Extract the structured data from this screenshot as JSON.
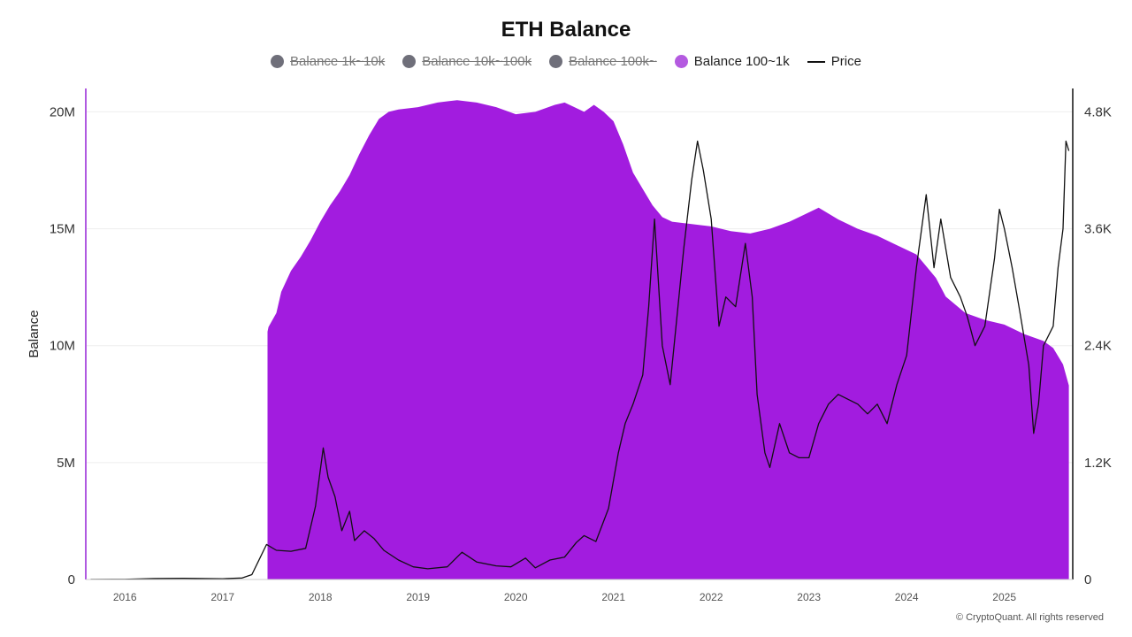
{
  "chart_data": {
    "type": "area",
    "title": "ETH Balance",
    "ylabel": "Balance",
    "y2label": "",
    "ylim": [
      0,
      21000000
    ],
    "y2lim": [
      0,
      5040
    ],
    "xlim": [
      2015.6,
      2025.7
    ],
    "y_ticks": [
      "0",
      "5M",
      "10M",
      "15M",
      "20M"
    ],
    "y_tick_values": [
      0,
      5000000,
      10000000,
      15000000,
      20000000
    ],
    "y2_ticks": [
      "0",
      "1.2K",
      "2.4K",
      "3.6K",
      "4.8K"
    ],
    "y2_tick_values": [
      0,
      1200,
      2400,
      3600,
      4800
    ],
    "x_ticks": [
      "2016",
      "2017",
      "2018",
      "2019",
      "2020",
      "2021",
      "2022",
      "2023",
      "2024",
      "2025"
    ],
    "x_tick_values": [
      2016,
      2017,
      2018,
      2019,
      2020,
      2021,
      2022,
      2023,
      2024,
      2025
    ],
    "grid": true,
    "legend_position": "top-center",
    "colors": {
      "balance_100_1k": "#a21cdf",
      "legend_active_dot": "#b45ae0",
      "legend_inactive_dot": "#6f6f7a",
      "price": "#111111",
      "left_axis": "#b05ae0"
    },
    "legend": [
      {
        "label": "Balance 1k~10k",
        "active": false,
        "marker": "dot"
      },
      {
        "label": "Balance 10k~100k",
        "active": false,
        "marker": "dot"
      },
      {
        "label": "Balance 100k~",
        "active": false,
        "marker": "dot"
      },
      {
        "label": "Balance 100~1k",
        "active": true,
        "marker": "dot"
      },
      {
        "label": "Price",
        "active": true,
        "marker": "line"
      }
    ],
    "series": [
      {
        "name": "Balance 100~1k",
        "type": "area",
        "axis": "left",
        "x": [
          2017.46,
          2017.47,
          2017.55,
          2017.6,
          2017.7,
          2017.8,
          2017.9,
          2018.0,
          2018.1,
          2018.2,
          2018.3,
          2018.4,
          2018.5,
          2018.6,
          2018.7,
          2018.8,
          2019.0,
          2019.2,
          2019.4,
          2019.6,
          2019.8,
          2020.0,
          2020.2,
          2020.4,
          2020.5,
          2020.6,
          2020.7,
          2020.8,
          2020.9,
          2021.0,
          2021.1,
          2021.2,
          2021.3,
          2021.4,
          2021.5,
          2021.6,
          2021.8,
          2022.0,
          2022.2,
          2022.4,
          2022.6,
          2022.8,
          2022.95,
          2023.1,
          2023.3,
          2023.5,
          2023.7,
          2023.9,
          2024.1,
          2024.2,
          2024.3,
          2024.4,
          2024.6,
          2024.8,
          2025.0,
          2025.2,
          2025.4,
          2025.5,
          2025.6,
          2025.66
        ],
        "y": [
          10600000,
          10800000,
          11400000,
          12300000,
          13200000,
          13800000,
          14500000,
          15300000,
          16000000,
          16600000,
          17300000,
          18200000,
          19000000,
          19700000,
          20000000,
          20100000,
          20200000,
          20400000,
          20500000,
          20400000,
          20200000,
          19900000,
          20000000,
          20300000,
          20400000,
          20200000,
          20000000,
          20300000,
          20000000,
          19600000,
          18600000,
          17400000,
          16700000,
          16000000,
          15500000,
          15300000,
          15200000,
          15100000,
          14900000,
          14800000,
          15000000,
          15300000,
          15600000,
          15900000,
          15400000,
          15000000,
          14700000,
          14300000,
          13900000,
          13400000,
          12900000,
          12100000,
          11400000,
          11100000,
          10900000,
          10500000,
          10200000,
          9900000,
          9200000,
          8300000
        ]
      },
      {
        "name": "Price",
        "type": "line",
        "axis": "right",
        "x": [
          2015.65,
          2016.0,
          2016.3,
          2016.6,
          2017.0,
          2017.2,
          2017.3,
          2017.45,
          2017.55,
          2017.7,
          2017.85,
          2017.95,
          2018.03,
          2018.08,
          2018.15,
          2018.22,
          2018.3,
          2018.35,
          2018.45,
          2018.55,
          2018.65,
          2018.8,
          2018.95,
          2019.1,
          2019.3,
          2019.45,
          2019.6,
          2019.8,
          2019.95,
          2020.1,
          2020.2,
          2020.35,
          2020.5,
          2020.62,
          2020.7,
          2020.82,
          2020.95,
          2021.05,
          2021.12,
          2021.2,
          2021.3,
          2021.36,
          2021.42,
          2021.5,
          2021.58,
          2021.66,
          2021.72,
          2021.8,
          2021.86,
          2021.92,
          2022.0,
          2022.08,
          2022.15,
          2022.25,
          2022.35,
          2022.42,
          2022.47,
          2022.55,
          2022.6,
          2022.7,
          2022.8,
          2022.9,
          2023.0,
          2023.1,
          2023.2,
          2023.3,
          2023.4,
          2023.5,
          2023.6,
          2023.7,
          2023.8,
          2023.9,
          2024.0,
          2024.1,
          2024.2,
          2024.28,
          2024.35,
          2024.45,
          2024.55,
          2024.62,
          2024.7,
          2024.8,
          2024.9,
          2024.95,
          2025.0,
          2025.08,
          2025.15,
          2025.25,
          2025.3,
          2025.35,
          2025.4,
          2025.5,
          2025.55,
          2025.6,
          2025.63,
          2025.66
        ],
        "y": [
          1,
          2,
          10,
          12,
          8,
          15,
          50,
          360,
          300,
          290,
          320,
          750,
          1350,
          1050,
          850,
          500,
          700,
          400,
          500,
          420,
          300,
          200,
          130,
          110,
          130,
          280,
          180,
          140,
          130,
          220,
          120,
          200,
          230,
          380,
          450,
          390,
          730,
          1300,
          1600,
          1800,
          2100,
          2800,
          3700,
          2400,
          2000,
          2800,
          3400,
          4100,
          4500,
          4200,
          3700,
          2600,
          2900,
          2800,
          3450,
          2900,
          1900,
          1300,
          1150,
          1600,
          1300,
          1250,
          1250,
          1600,
          1800,
          1900,
          1850,
          1800,
          1700,
          1800,
          1600,
          2000,
          2300,
          3200,
          3950,
          3200,
          3700,
          3100,
          2900,
          2700,
          2400,
          2600,
          3300,
          3800,
          3600,
          3200,
          2800,
          2200,
          1500,
          1800,
          2400,
          2600,
          3200,
          3600,
          4500,
          4400
        ]
      }
    ]
  },
  "credit": "© CryptoQuant. All rights reserved"
}
